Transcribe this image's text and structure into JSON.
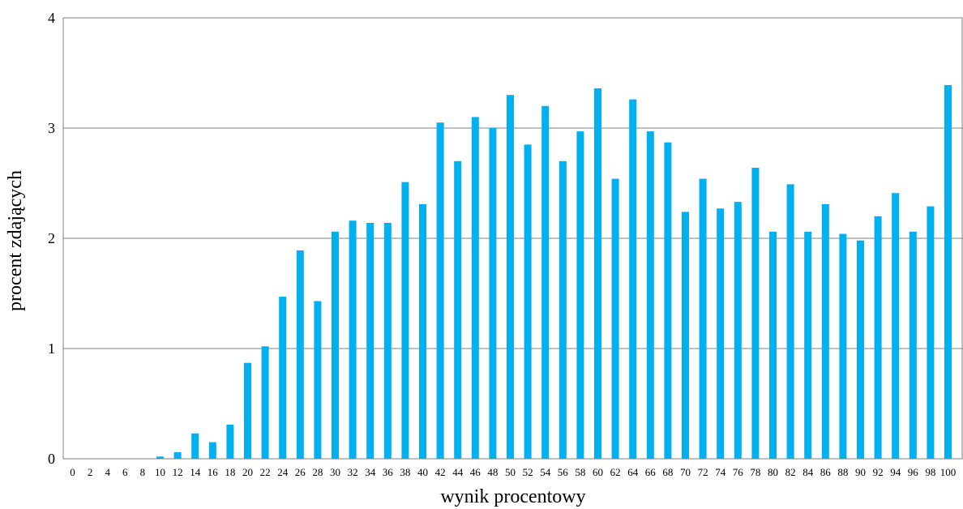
{
  "chart_data": {
    "type": "bar",
    "title": "",
    "xlabel": "wynik procentowy",
    "ylabel": "procent zdających",
    "ylim": [
      0,
      4
    ],
    "yticks": [
      0,
      1,
      2,
      3,
      4
    ],
    "grid": "horizontal",
    "legend": "none",
    "bar_color": "#00B0F0",
    "categories": [
      "0",
      "2",
      "4",
      "6",
      "8",
      "10",
      "12",
      "14",
      "16",
      "18",
      "20",
      "22",
      "24",
      "26",
      "28",
      "30",
      "32",
      "34",
      "36",
      "38",
      "40",
      "42",
      "44",
      "46",
      "48",
      "50",
      "52",
      "54",
      "56",
      "58",
      "60",
      "62",
      "64",
      "66",
      "68",
      "70",
      "72",
      "74",
      "76",
      "78",
      "80",
      "82",
      "84",
      "86",
      "88",
      "90",
      "92",
      "94",
      "96",
      "98",
      "100"
    ],
    "values": [
      0,
      0,
      0,
      0,
      0,
      0.02,
      0.06,
      0.23,
      0.15,
      0.31,
      0.87,
      1.02,
      1.47,
      1.89,
      1.43,
      2.06,
      2.16,
      2.14,
      2.14,
      2.51,
      2.31,
      3.05,
      2.7,
      3.1,
      3.0,
      3.3,
      2.85,
      3.2,
      2.7,
      2.97,
      3.36,
      2.54,
      3.26,
      2.97,
      2.87,
      2.24,
      2.54,
      2.27,
      2.33,
      2.64,
      2.06,
      2.49,
      2.06,
      2.31,
      2.04,
      1.98,
      2.2,
      2.41,
      2.06,
      2.29,
      3.39
    ]
  }
}
